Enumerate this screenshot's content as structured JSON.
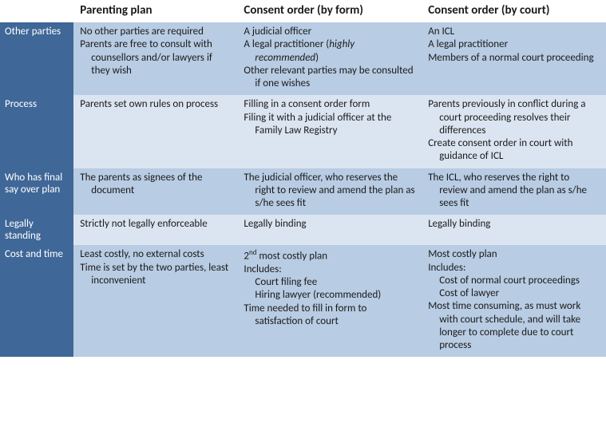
{
  "colors": {
    "row_label_bg": "#3f6797",
    "row_label_fg": "#ffffff",
    "band_a": "#b8cce3",
    "band_b": "#dbe5f1",
    "text": "#1a1a1a"
  },
  "columns": {
    "c0": "",
    "c1": "Parenting plan",
    "c2": "Consent order (by form)",
    "c3": "Consent order (by court)"
  },
  "rows": [
    {
      "label": "Other parties",
      "band": "a",
      "c1": [
        "No other parties are required",
        "Parents are free to consult with counsellors and/or lawyers if they wish"
      ],
      "c2": [
        "A judicial officer",
        "A legal practitioner (<em>highly recommended</em>)",
        "Other relevant parties may be consulted if one wishes"
      ],
      "c3": [
        "An ICL",
        "A legal practitioner",
        "Members of a normal court proceeding"
      ]
    },
    {
      "label": "Process",
      "band": "b",
      "c1": [
        "Parents set own rules on process"
      ],
      "c2": [
        "Filling in a consent order form",
        "Filing it with a judicial officer at the Family Law Registry"
      ],
      "c3": [
        "Parents previously in conflict during a court proceeding resolves their differences",
        "Create consent order in court with guidance of ICL"
      ]
    },
    {
      "label": "Who has final say over plan",
      "band": "a",
      "c1": [
        "The parents as signees of the document"
      ],
      "c2": [
        "The judicial officer, who reserves the right to review and amend the plan as s/he sees fit"
      ],
      "c3": [
        "The ICL, who reserves the right to review and amend the plan as s/he sees fit"
      ]
    },
    {
      "label": "Legally standing",
      "band": "b",
      "c1": [
        "Strictly not legally enforceable"
      ],
      "c2": [
        "Legally binding"
      ],
      "c3": [
        "Legally binding"
      ]
    },
    {
      "label": "Cost and time",
      "band": "a",
      "c1": [
        "Least costly, no external costs",
        "Time is set by the two parties, least inconvenient"
      ],
      "c2": [
        "2<sup>nd</sup> most costly plan",
        "Includes:",
        {
          "sub": "Court filing fee"
        },
        {
          "sub": "Hiring lawyer (recommended)"
        },
        "Time needed to fill in form to satisfaction of court"
      ],
      "c3": [
        "Most costly plan",
        "Includes:",
        {
          "sub": "Cost of normal court proceedings"
        },
        {
          "sub": "Cost of lawyer"
        },
        "Most time consuming, as must work with court schedule, and will take longer to complete due to court process"
      ]
    }
  ]
}
